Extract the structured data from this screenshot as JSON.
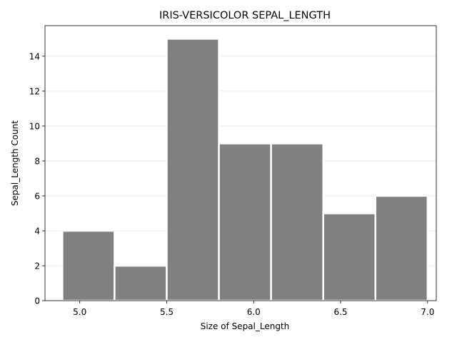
{
  "chart_data": {
    "type": "bar",
    "title": "IRIS-VERSICOLOR SEPAL_LENGTH",
    "xlabel": "Size of Sepal_Length",
    "ylabel": "Sepal_Length Count",
    "bins": [
      {
        "start": 4.9,
        "end": 5.2,
        "count": 4
      },
      {
        "start": 5.2,
        "end": 5.5,
        "count": 2
      },
      {
        "start": 5.5,
        "end": 5.8,
        "count": 15
      },
      {
        "start": 5.8,
        "end": 6.1,
        "count": 9
      },
      {
        "start": 6.1,
        "end": 6.4,
        "count": 9
      },
      {
        "start": 6.4,
        "end": 6.7,
        "count": 5
      },
      {
        "start": 6.7,
        "end": 7.0,
        "count": 6
      }
    ],
    "xlim": [
      4.8,
      7.05
    ],
    "ylim": [
      0,
      15.75
    ],
    "xticks": [
      5.0,
      5.5,
      6.0,
      6.5,
      7.0
    ],
    "xtick_labels": [
      "5.0",
      "5.5",
      "6.0",
      "6.5",
      "7.0"
    ],
    "yticks": [
      0,
      2,
      4,
      6,
      8,
      10,
      12,
      14
    ],
    "ytick_labels": [
      "0",
      "2",
      "4",
      "6",
      "8",
      "10",
      "12",
      "14"
    ],
    "grid": "y",
    "bar_color": "#808080",
    "grid_color": "#e6e6e6"
  }
}
